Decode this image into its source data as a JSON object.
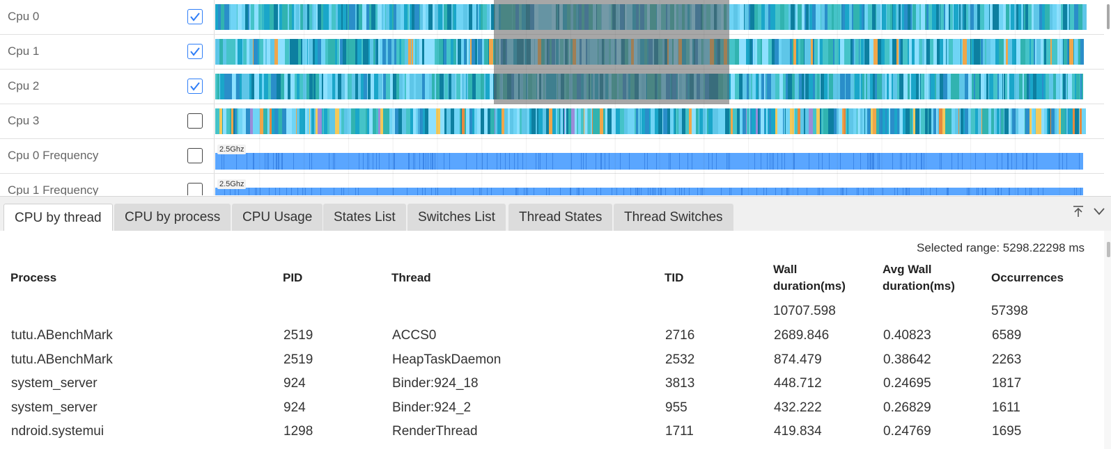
{
  "rows": [
    {
      "label": "Cpu 0",
      "checked": true,
      "kind": "cpu"
    },
    {
      "label": "Cpu 1",
      "checked": true,
      "kind": "cpu"
    },
    {
      "label": "Cpu 2",
      "checked": true,
      "kind": "cpu"
    },
    {
      "label": "Cpu 3",
      "checked": false,
      "kind": "cpu"
    },
    {
      "label": "Cpu 0 Frequency",
      "checked": false,
      "kind": "freq",
      "freq_label": "2.5Ghz"
    },
    {
      "label": "Cpu 1 Frequency",
      "checked": false,
      "kind": "freq",
      "freq_label": "2.5Ghz"
    }
  ],
  "colors": {
    "cpu_palette": [
      "#6fd4f5",
      "#5ec6e8",
      "#1aa6c9",
      "#0d7fa0",
      "#31b3b0",
      "#45c3c8",
      "#8de0ff",
      "#2a8ec9",
      "#f0a64a",
      "#e68a3e",
      "#9a8cd9",
      "#f3c95a",
      "#126e86"
    ],
    "freq_bar": "#5aa6ff",
    "freq_dark": "#3b86e8",
    "checkbox_accent": "#2f7ef7"
  },
  "tabs": [
    {
      "label": "CPU by thread",
      "active": true
    },
    {
      "label": "CPU by process",
      "active": false
    },
    {
      "label": "CPU Usage",
      "active": false
    },
    {
      "label": "States List",
      "active": false
    },
    {
      "label": "Switches List",
      "active": false
    },
    {
      "label": "Thread States",
      "active": false
    },
    {
      "label": "Thread Switches",
      "active": false
    }
  ],
  "tab_actions": [
    {
      "icon": "pin-top-icon"
    },
    {
      "icon": "chevron-down-icon"
    }
  ],
  "selected_range": "Selected range: 5298.22298 ms",
  "table": {
    "columns": [
      "Process",
      "PID",
      "Thread",
      "TID",
      "Wall\nduration(ms)",
      "Avg Wall\nduration(ms)",
      "Occurrences"
    ],
    "totals": {
      "wall_duration": "10707.598",
      "occurrences": "57398"
    },
    "rows": [
      [
        "tutu.ABenchMark",
        "2519",
        "ACCS0",
        "2716",
        "2689.846",
        "0.40823",
        "6589"
      ],
      [
        "tutu.ABenchMark",
        "2519",
        "HeapTaskDaemon",
        "2532",
        "874.479",
        "0.38642",
        "2263"
      ],
      [
        "system_server",
        "924",
        "Binder:924_18",
        "3813",
        "448.712",
        "0.24695",
        "1817"
      ],
      [
        "system_server",
        "924",
        "Binder:924_2",
        "955",
        "432.222",
        "0.26829",
        "1611"
      ],
      [
        "ndroid.systemui",
        "1298",
        "RenderThread",
        "1711",
        "419.834",
        "0.24769",
        "1695"
      ]
    ]
  }
}
